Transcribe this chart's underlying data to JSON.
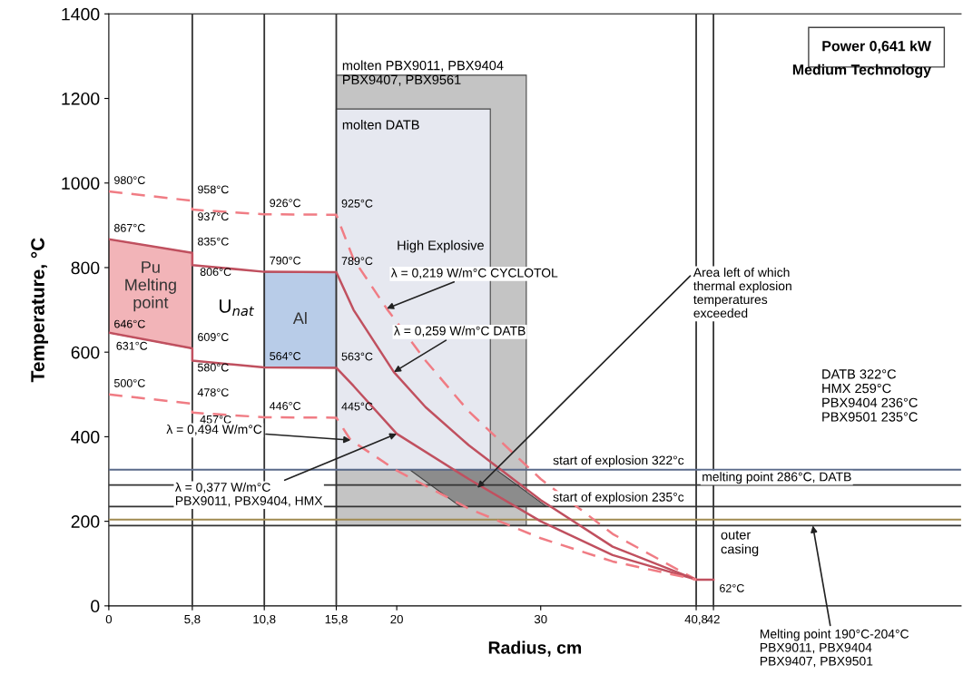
{
  "chart_data": {
    "type": "line",
    "title": "Power 0,641 kW",
    "subtitle": "Medium Technology",
    "xlabel": "Radius, cm",
    "ylabel": "Temperature, °C",
    "xlim": [
      0,
      59.2
    ],
    "ylim": [
      0,
      1400
    ],
    "xticks": [
      0,
      {
        "value": 5.8,
        "label": "5,8"
      },
      {
        "value": 10.8,
        "label": "10,8"
      },
      {
        "value": 15.8,
        "label": "15,8"
      },
      20,
      30,
      {
        "value": 40.8,
        "label": "40,8"
      },
      42
    ],
    "yticks": [
      0,
      200,
      400,
      600,
      800,
      1000,
      1200,
      1400
    ],
    "grid": false,
    "legend": false,
    "series": [
      {
        "line_style": "dashed",
        "color": "#f07c84",
        "x": [
          0,
          5.8,
          5.8,
          10.8,
          15.8,
          17,
          19.3,
          22,
          25,
          30,
          35,
          40.8
        ],
        "values": [
          980,
          958,
          937,
          926,
          925,
          820,
          703,
          580,
          460,
          300,
          170,
          62
        ]
      },
      {
        "line_style": "solid",
        "color": "#c0505f",
        "x": [
          0,
          5.8,
          5.8,
          10.8,
          15.8,
          17,
          19.8,
          22,
          25,
          30,
          35,
          40.8,
          42
        ],
        "values": [
          867,
          835,
          806,
          790,
          789,
          700,
          553,
          470,
          380,
          250,
          140,
          62,
          62
        ]
      },
      {
        "line_style": "solid",
        "color": "#c0505f",
        "x": [
          0,
          5.8,
          5.8,
          10.8,
          15.8,
          17,
          20,
          25,
          30,
          35,
          40.8
        ],
        "values": [
          646,
          609,
          580,
          564,
          563,
          520,
          407,
          300,
          200,
          120,
          62
        ]
      },
      {
        "line_style": "dashed",
        "color": "#f07c84",
        "x": [
          0,
          5.8,
          5.8,
          10.8,
          15.8,
          16.8,
          20,
          25,
          30,
          35,
          40.8
        ],
        "values": [
          500,
          478,
          457,
          446,
          445,
          392,
          320,
          230,
          160,
          105,
          62
        ]
      }
    ],
    "ref_lines": [
      {
        "axis": "x",
        "value": 5.8,
        "color": "#333333"
      },
      {
        "axis": "x",
        "value": 10.8,
        "color": "#333333"
      },
      {
        "axis": "x",
        "value": 15.8,
        "color": "#333333"
      },
      {
        "axis": "x",
        "value": 40.8,
        "color": "#333333"
      },
      {
        "axis": "x",
        "value": 42,
        "color": "#333333"
      },
      {
        "axis": "y",
        "value": 322,
        "label": "start of explosion 322°c",
        "color": "#5a6a8a"
      },
      {
        "axis": "y",
        "value": 286,
        "label": "melting point 286°C, DATB",
        "color": "#333333"
      },
      {
        "axis": "y",
        "value": 235,
        "label": "start of explosion 235°c",
        "color": "#333333"
      },
      {
        "axis": "y",
        "value": 204,
        "color": "#a08a50"
      },
      {
        "axis": "y",
        "value": 190,
        "color": "#333333"
      }
    ],
    "annotations": [
      {
        "text": "980°C",
        "x": 0,
        "y": 980
      },
      {
        "text": "867°C",
        "x": 0,
        "y": 867
      },
      {
        "text": "646°C",
        "x": 0,
        "y": 646
      },
      "631°C",
      {
        "text": "500°C",
        "x": 0,
        "y": 500
      },
      {
        "text": "958°C",
        "x": 5.8,
        "y": 958
      },
      {
        "text": "937°C",
        "x": 5.8,
        "y": 937
      },
      {
        "text": "835°C",
        "x": 5.8,
        "y": 835
      },
      {
        "text": "806°C",
        "x": 5.8,
        "y": 806
      },
      {
        "text": "609°C",
        "x": 5.8,
        "y": 609
      },
      {
        "text": "580°C",
        "x": 5.8,
        "y": 580
      },
      {
        "text": "478°C",
        "x": 5.8,
        "y": 478
      },
      {
        "text": "457°C",
        "x": 5.8,
        "y": 457
      },
      {
        "text": "926°C",
        "x": 10.8,
        "y": 926
      },
      {
        "text": "790°C",
        "x": 10.8,
        "y": 790
      },
      {
        "text": "564°C",
        "x": 10.8,
        "y": 564
      },
      {
        "text": "446°C",
        "x": 10.8,
        "y": 446
      },
      {
        "text": "925°C",
        "x": 15.8,
        "y": 925
      },
      {
        "text": "789°C",
        "x": 15.8,
        "y": 789
      },
      {
        "text": "563°C",
        "x": 15.8,
        "y": 563
      },
      {
        "text": "445°C",
        "x": 15.8,
        "y": 445
      },
      "62°C",
      {
        "text": "λ = 0,219 W/m°C CYCLOTOL",
        "x": 19.3,
        "y": 703
      },
      {
        "text": "λ = 0,259 W/m°C DATB",
        "x": 19.8,
        "y": 553
      },
      {
        "text": "λ = 0,494 W/m°C",
        "x": 16.8,
        "y": 392
      },
      {
        "text": "λ = 0,377 W/m°C\nPBX9011, PBX9404, HMX",
        "x": 20,
        "y": 407
      },
      {
        "text": "Area left of which\nthermal explosion\ntemperatures\nexceeded",
        "x": 25.6,
        "y": 279
      },
      {
        "text": "Melting point 190°C-204°C\nPBX9011, PBX9404\nPBX9407, PBX9501",
        "x": 48.9,
        "y": 190
      },
      "High Explosive",
      "molten DATB",
      "molten PBX9011, PBX9404\nPBX9407, PBX9561",
      "DATB 322°C\nHMX 259°C\nPBX9404 236°C\nPBX9501 235°C",
      "outer\ncasing",
      "U$_{nat}$",
      "Pu\nMelting\npoint",
      "Al"
    ]
  }
}
